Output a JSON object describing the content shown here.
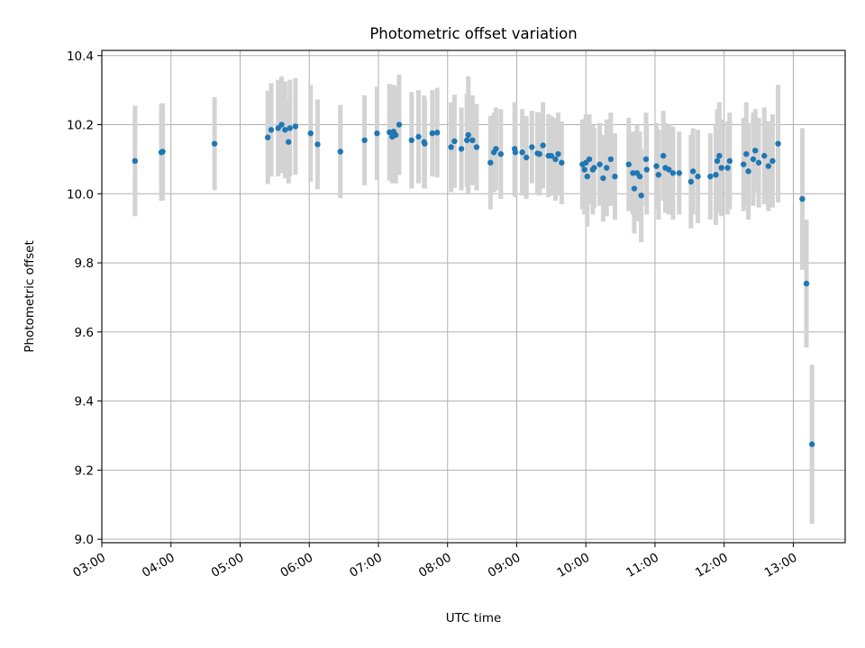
{
  "chart_data": {
    "type": "scatter",
    "title": "Photometric offset variation",
    "xlabel": "UTC time",
    "ylabel": "Photometric offset",
    "x_unit": "hours UTC",
    "xlim": [
      3.0,
      13.75
    ],
    "ylim": [
      8.99,
      10.415
    ],
    "x_ticks": [
      3,
      4,
      5,
      6,
      7,
      8,
      9,
      10,
      11,
      12,
      13
    ],
    "x_tick_labels": [
      "03:00",
      "04:00",
      "05:00",
      "06:00",
      "07:00",
      "08:00",
      "09:00",
      "10:00",
      "11:00",
      "12:00",
      "13:00"
    ],
    "y_ticks": [
      9.0,
      9.2,
      9.4,
      9.6,
      9.8,
      10.0,
      10.2,
      10.4
    ],
    "y_tick_labels": [
      "9.0",
      "9.2",
      "9.4",
      "9.6",
      "9.8",
      "10.0",
      "10.2",
      "10.4"
    ],
    "grid": true,
    "colors": {
      "points": "#1f77b4",
      "errorbars": "#d3d3d3",
      "grid": "#b0b0b0"
    },
    "series": [
      {
        "x": [
          3.48,
          3.86,
          3.88,
          4.63,
          5.4,
          5.45,
          5.55,
          5.6,
          5.65,
          5.7,
          5.72,
          5.8,
          6.02,
          6.12,
          6.45,
          6.8,
          6.98,
          7.16,
          7.2,
          7.22,
          7.25,
          7.3,
          7.48,
          7.58,
          7.66,
          7.67,
          7.78,
          7.85,
          8.05,
          8.1,
          8.2,
          8.28,
          8.3,
          8.36,
          8.42,
          8.62,
          8.67,
          8.7,
          8.77,
          8.97,
          8.98,
          9.08,
          9.14,
          9.22,
          9.3,
          9.33,
          9.38,
          9.46,
          9.5,
          9.56,
          9.6,
          9.65,
          9.95,
          9.98,
          10.0,
          10.02,
          10.05,
          10.1,
          10.12,
          10.2,
          10.25,
          10.3,
          10.36,
          10.42,
          10.62,
          10.68,
          10.7,
          10.74,
          10.78,
          10.8,
          10.87,
          10.88,
          11.02,
          11.05,
          11.12,
          11.15,
          11.2,
          11.26,
          11.35,
          11.52,
          11.55,
          11.62,
          11.8,
          11.88,
          11.9,
          11.93,
          11.96,
          12.05,
          12.08,
          12.28,
          12.32,
          12.35,
          12.42,
          12.45,
          12.5,
          12.58,
          12.64,
          12.7,
          12.78,
          13.13,
          13.19,
          13.27
        ],
        "y": [
          10.095,
          10.12,
          10.122,
          10.145,
          10.163,
          10.185,
          10.19,
          10.2,
          10.185,
          10.15,
          10.19,
          10.195,
          10.175,
          10.143,
          10.122,
          10.155,
          10.175,
          10.178,
          10.165,
          10.18,
          10.17,
          10.2,
          10.155,
          10.165,
          10.15,
          10.145,
          10.175,
          10.177,
          10.135,
          10.152,
          10.13,
          10.155,
          10.17,
          10.155,
          10.135,
          10.09,
          10.12,
          10.13,
          10.115,
          10.13,
          10.12,
          10.12,
          10.105,
          10.135,
          10.117,
          10.115,
          10.14,
          10.11,
          10.11,
          10.1,
          10.115,
          10.09,
          10.085,
          10.07,
          10.09,
          10.05,
          10.1,
          10.07,
          10.075,
          10.085,
          10.045,
          10.075,
          10.1,
          10.05,
          10.085,
          10.06,
          10.015,
          10.06,
          10.05,
          9.995,
          10.1,
          10.07,
          10.08,
          10.055,
          10.11,
          10.075,
          10.07,
          10.06,
          10.06,
          10.035,
          10.065,
          10.05,
          10.05,
          10.055,
          10.095,
          10.11,
          10.075,
          10.075,
          10.095,
          10.085,
          10.115,
          10.065,
          10.1,
          10.125,
          10.09,
          10.11,
          10.08,
          10.095,
          10.145,
          9.985,
          9.74,
          9.275
        ],
        "yerr": [
          0.16,
          0.14,
          0.14,
          0.135,
          0.135,
          0.135,
          0.14,
          0.14,
          0.14,
          0.12,
          0.14,
          0.14,
          0.14,
          0.13,
          0.135,
          0.13,
          0.135,
          0.14,
          0.135,
          0.135,
          0.14,
          0.145,
          0.14,
          0.135,
          0.135,
          0.13,
          0.125,
          0.13,
          0.13,
          0.135,
          0.12,
          0.135,
          0.17,
          0.13,
          0.125,
          0.135,
          0.115,
          0.12,
          0.13,
          0.135,
          0.13,
          0.125,
          0.12,
          0.105,
          0.12,
          0.12,
          0.125,
          0.12,
          0.115,
          0.12,
          0.12,
          0.12,
          0.13,
          0.13,
          0.14,
          0.145,
          0.13,
          0.13,
          0.115,
          0.12,
          0.125,
          0.14,
          0.135,
          0.125,
          0.135,
          0.12,
          0.13,
          0.14,
          0.13,
          0.135,
          0.135,
          0.13,
          0.125,
          0.13,
          0.13,
          0.13,
          0.13,
          0.135,
          0.12,
          0.135,
          0.125,
          0.135,
          0.125,
          0.145,
          0.15,
          0.155,
          0.14,
          0.135,
          0.14,
          0.135,
          0.15,
          0.14,
          0.135,
          0.12,
          0.13,
          0.14,
          0.13,
          0.135,
          0.17,
          0.205,
          0.185,
          0.23
        ]
      }
    ]
  }
}
